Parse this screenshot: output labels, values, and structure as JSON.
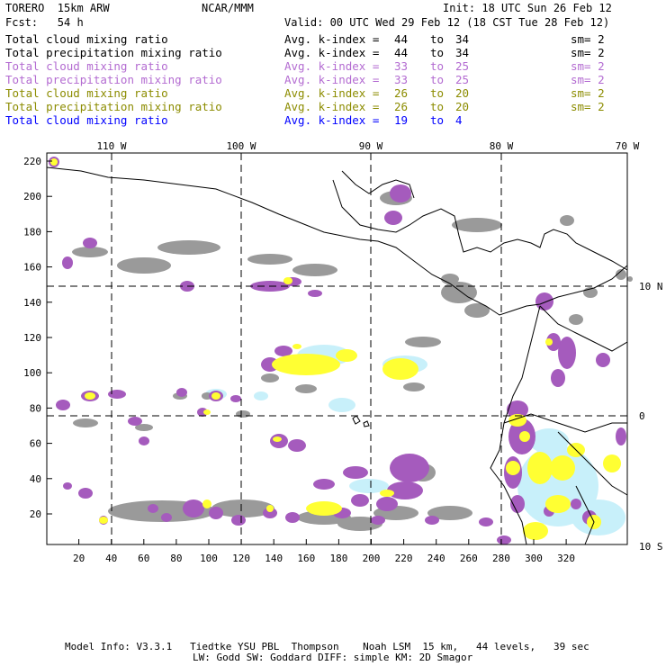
{
  "header": {
    "model": "TORERO  15km ARW",
    "center": "NCAR/MMM",
    "init": "Init: 18 UTC Sun 26 Feb 12",
    "fcst": "Fcst:   54 h",
    "valid": "Valid: 00 UTC Wed 29 Feb 12 (18 CST Tue 28 Feb 12)"
  },
  "legend": [
    {
      "desc": "Total cloud mixing ratio",
      "avg": "Avg. k-index =",
      "lo": "44",
      "to": "to",
      "hi": "34",
      "sm": "sm= 2",
      "color": "#000000"
    },
    {
      "desc": "Total precipitation mixing ratio",
      "avg": "Avg. k-index =",
      "lo": "44",
      "to": "to",
      "hi": "34",
      "sm": "sm= 2",
      "color": "#000000"
    },
    {
      "desc": "Total cloud mixing ratio",
      "avg": "Avg. k-index =",
      "lo": "33",
      "to": "to",
      "hi": "25",
      "sm": "sm= 2",
      "color": "#b36bd1"
    },
    {
      "desc": "Total precipitation mixing ratio",
      "avg": "Avg. k-index =",
      "lo": "33",
      "to": "to",
      "hi": "25",
      "sm": "sm= 2",
      "color": "#b36bd1"
    },
    {
      "desc": "Total cloud mixing ratio",
      "avg": "Avg. k-index =",
      "lo": "26",
      "to": "to",
      "hi": "20",
      "sm": "sm= 2",
      "color": "#8c8c00"
    },
    {
      "desc": "Total precipitation mixing ratio",
      "avg": "Avg. k-index =",
      "lo": "26",
      "to": "to",
      "hi": "20",
      "sm": "sm= 2",
      "color": "#8c8c00"
    },
    {
      "desc": "Total cloud mixing ratio",
      "avg": "Avg. k-index =",
      "lo": "19",
      "to": "to",
      "hi": "4",
      "sm": "",
      "color": "#0000ff"
    }
  ],
  "axes": {
    "top_lon": [
      "110 W",
      "100 W",
      "90 W",
      "80 W",
      "70 W"
    ],
    "right_lat": [
      "10 N",
      "0",
      "10 S"
    ],
    "x_ticks": [
      "20",
      "40",
      "60",
      "80",
      "100",
      "120",
      "140",
      "160",
      "180",
      "200",
      "220",
      "240",
      "260",
      "280",
      "300",
      "320"
    ],
    "y_ticks": [
      "20",
      "40",
      "60",
      "80",
      "100",
      "120",
      "140",
      "160",
      "180",
      "200",
      "220"
    ]
  },
  "colors": {
    "deep": "#9a9a9a",
    "mid": "#a55bbd",
    "low": "#ffff33",
    "shallow": "#c8f0fa"
  },
  "footer": {
    "line1": "Model Info: V3.3.1   Tiedtke YSU PBL  Thompson    Noah LSM  15 km,   44 levels,   39 sec",
    "line2": "LW: Godd SW: Goddard DIFF: simple KM: 2D Smagor"
  }
}
